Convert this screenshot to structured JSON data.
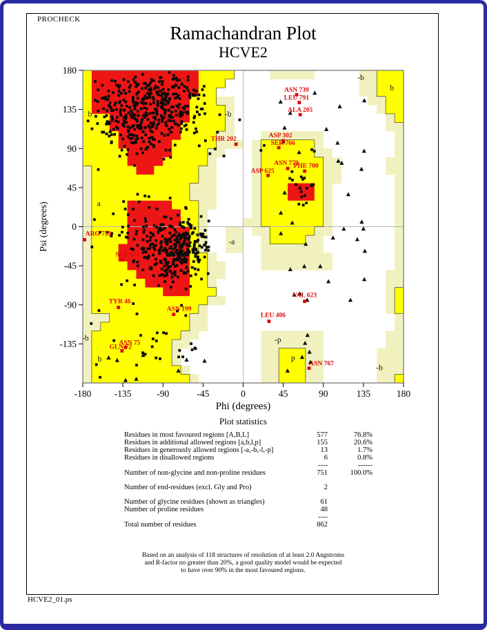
{
  "window": {
    "app_label": "PROCHECK",
    "file_label": "HCVE2_01.ps"
  },
  "title": "Ramachandran Plot",
  "subtitle": "HCVE2",
  "axes": {
    "xlabel": "Phi (degrees)",
    "ylabel": "Psi (degrees)",
    "xlim": [
      -180,
      180
    ],
    "ylim": [
      -180,
      180
    ],
    "x_ticks": [
      -180,
      -135,
      -90,
      -45,
      0,
      45,
      90,
      135,
      180
    ],
    "y_ticks": [
      180,
      135,
      90,
      45,
      0,
      -45,
      -90,
      -135
    ],
    "grid_crosshair": [
      0,
      0
    ]
  },
  "colors": {
    "favoured": "#ee1515",
    "allowed": "#ffff00",
    "generous": "#f1f1bf",
    "disallowed": "#ffffff",
    "boundary": "#3a3a2a",
    "frame": "#7a7a7a",
    "gridline": "#b2b2b2",
    "marker": "#0a0a0a",
    "outlier": "#dd0808",
    "border_navy": "#2a2aa2"
  },
  "chart_data": {
    "type": "scatter",
    "title": "Ramachandran Plot",
    "structure": "HCVE2",
    "region_grid": {
      "cell_deg": 10,
      "legend": {
        "R": "most favoured [A,B,L]",
        "Y": "additional allowed [a,b,l,p]",
        "G": "generously allowed [-a,-b,-l,-p]",
        "W": "disallowed"
      },
      "rows": [
        "YRRRRRRRRRRRRYYYYWWWWGGGGGWWWWWGGYYY",
        "YRRRRRRRRRRRRYYYWWWWWWWWWWWWWWWGGYYY",
        "YRRRRRRRRRRRRYYWWWWWWWWWWWWWWWWGGYYY",
        "YRRRRRRRRRRRYYYGGWWWWWWWWWWWWWWWGGYY",
        "YRRRRRRRRRRRYYYYGWWWWWWWWWWWWWWWWGYY",
        "YYYRRRRRRRRRYYYYGWWWWWWWWWWWWWWWWWGY",
        "YYYRRRRRRRRYYYYYGWWWWWWWWWWWWWWWWWGG",
        "YYYYRRRRRRRYYYYGGWWWGGGGGGGWWWWWWWWG",
        "YYYYRRRRRRYYYYYGGGWGYYYYYYGWWWWWWWWG",
        "YYYYYRRRRRYYYYGGWWWGYYYYYYGGWWWWWWWG",
        "YYYYYRRRRYYYYYGWWWWGYYYYYYYGGWWWWWGG",
        "GYYYYYRRYYYYYGGWWWWGYYYYYYYGGWWWWWGG",
        "GYYYYYYYYYYYYGGWWWWGYYYYYYYGGWWWWWWG",
        "GYYYYYYYYYYYGGGWWWWGYYYRRRYGWWWWWWWG",
        "GYYYYYYYYYYYGGGWWWWGYYYRRRYGWWWWWWWG",
        "GYYYYRRRRRYYYGGWWWWGYYYYYYYGWWWWWWWG",
        "GYYYYRRRRRRYYGWWWWWGYYYYYYYGWWWWWWWG",
        "GYYYYRRRRRRYYGWWWWGGYYYYYYYGWWWWWWWG",
        "GYYYYRRRRRRRYGWWGGWGGYYYYYGGWWWWWWWG",
        "GYYYYRRRRRRRYGWWGGWWGYYYYGGWWWWWWWWG",
        "GYYYRRRRRRRRYGWWGGWWGGGGGGGWWWWWWWWG",
        "GYYYRRRRRRRRYYGWWWWWGGGGGGGGWWWWWWWG",
        "GYYYYRRRRRRRYYGGWWWWGGGGGGGGWWWWWWWG",
        "GYYYYYRRRRRRYYGGWWWWWWWWWWWWWWWWWWGG",
        "GYYYYYYRRRRRYYGWWWWWWWWWWWWWWWWWWWGG",
        "GYYYYYYYYRRRYYYWWWWWWWWWWWWWWWWWWWGY",
        "GYYYYYYYYYYYYYGGWWWWWWWWWWWWWWWWWWGY",
        "GYYYYYYYYYYYYGWWWWWWWWWWWWWWWWWWWWGY",
        "GGGYYYYYYYYYGGWWWWWWWWWWWWWWWWWWWWWG",
        "GGYYYYYYYYYYGGWWWWWWWWWWWWWWWWWWWWWG",
        "GYYYYYYYYYYGGWWWWWWWGGGGGGGWWWWWWWGG",
        "GYYYYYYYYYGGWWWWWWWWGGGGGGGWWWWWWWGG",
        "GYYYYYYYYYGWWWWWWWWWGGYYYGGWWWWWWGGG",
        "GYYYYYYYYYGWWWWWWWWWGGYYYGGWWWWWWGGG",
        "GYYYYYYYYYYGWWWWWWWWGGYYYGGWWWWWWGGG",
        "GYYYYYYYYYYYGWWWWWWWGGYYYGGWWWWWWGGY"
      ]
    },
    "region_labels": [
      {
        "text": "b",
        "phi": -172,
        "psi": 130
      },
      {
        "text": "-b",
        "phi": -17,
        "psi": 130
      },
      {
        "text": "a",
        "phi": -162,
        "psi": 27
      },
      {
        "text": "-a",
        "phi": -13,
        "psi": -17
      },
      {
        "text": "-b",
        "phi": -177,
        "psi": -128
      },
      {
        "text": "b",
        "phi": -161,
        "psi": -152
      },
      {
        "text": "-b",
        "phi": 132,
        "psi": 172
      },
      {
        "text": "b",
        "phi": 167,
        "psi": 160
      },
      {
        "text": "-p",
        "phi": 39,
        "psi": -130
      },
      {
        "text": "p",
        "phi": 56,
        "psi": -151
      },
      {
        "text": "-b",
        "phi": 153,
        "psi": -162
      }
    ],
    "outliers": [
      {
        "label": "ASN 739",
        "phi": 60,
        "psi": 152,
        "dx": 0,
        "dy": -4
      },
      {
        "label": "LEU 791",
        "phi": 63,
        "psi": 143,
        "dx": -4,
        "dy": -4
      },
      {
        "label": "ALA 205",
        "phi": 64,
        "psi": 129,
        "dx": 0,
        "dy": -4
      },
      {
        "label": "THR 202",
        "phi": -8,
        "psi": 95,
        "dx": -18,
        "dy": -5
      },
      {
        "label": "ASP 302",
        "phi": 45,
        "psi": 99,
        "dx": -4,
        "dy": -5
      },
      {
        "label": "SER 766",
        "phi": 40,
        "psi": 91,
        "dx": 6,
        "dy": -4
      },
      {
        "label": "ASN 779",
        "phi": 50,
        "psi": 67,
        "dx": -2,
        "dy": -5
      },
      {
        "label": "ASP 625",
        "phi": 28,
        "psi": 59,
        "dx": -8,
        "dy": -4
      },
      {
        "label": "PHE 700",
        "phi": 69,
        "psi": 64,
        "dx": 2,
        "dy": -5
      },
      {
        "label": "ARG 728",
        "phi": -178,
        "psi": -15,
        "dx": 20,
        "dy": -6
      },
      {
        "label": "SER 618",
        "phi": -136,
        "psi": -38,
        "dx": 8,
        "dy": -5
      },
      {
        "label": "TYR 46",
        "phi": -140,
        "psi": -93,
        "dx": 2,
        "dy": -6
      },
      {
        "label": "ASN 199",
        "phi": -78,
        "psi": -101,
        "dx": 8,
        "dy": -5
      },
      {
        "label": "LEU 406",
        "phi": 29,
        "psi": -109,
        "dx": 6,
        "dy": -6
      },
      {
        "label": "VAL 623",
        "phi": 69,
        "psi": -86,
        "dx": 0,
        "dy": -6
      },
      {
        "label": "ASN 75",
        "phi": -132,
        "psi": -139,
        "dx": 6,
        "dy": -4
      },
      {
        "label": "GLN 72",
        "phi": -136,
        "psi": -143,
        "dx": -2,
        "dy": -3
      },
      {
        "label": "ASN 767",
        "phi": 74,
        "psi": -163,
        "dx": 18,
        "dy": -4
      }
    ],
    "clusters": [
      {
        "phi": -98,
        "psi": 140,
        "sd_phi": 30,
        "sd_psi": 23,
        "n": 330,
        "clip": {
          "phi": [
            -176,
            -40
          ],
          "psi": [
            58,
            178
          ]
        }
      },
      {
        "phi": -120,
        "psi": 118,
        "sd_phi": 24,
        "sd_psi": 20,
        "n": 90,
        "clip": {
          "phi": [
            -176,
            -45
          ],
          "psi": [
            60,
            178
          ]
        }
      },
      {
        "phi": -72,
        "psi": -26,
        "sd_phi": 21,
        "sd_psi": 17,
        "n": 270,
        "clip": {
          "phi": [
            -166,
            -38
          ],
          "psi": [
            -72,
            22
          ]
        }
      },
      {
        "phi": -102,
        "psi": -8,
        "sd_phi": 30,
        "sd_psi": 26,
        "n": 60,
        "clip": {
          "phi": [
            -172,
            -40
          ],
          "psi": [
            -80,
            40
          ]
        }
      },
      {
        "phi": 60,
        "psi": 40,
        "sd_phi": 11,
        "sd_psi": 15,
        "n": 15,
        "clip": {
          "phi": [
            30,
            85
          ],
          "psi": [
            -5,
            88
          ]
        }
      }
    ],
    "uniform_points": [
      {
        "n": 22,
        "phi": [
          -175,
          -42
        ],
        "psi": [
          -178,
          -122
        ]
      },
      {
        "n": 14,
        "phi": [
          -175,
          -32
        ],
        "psi": [
          -120,
          -62
        ]
      },
      {
        "n": 6,
        "phi": [
          -40,
          5
        ],
        "psi": [
          80,
          170
        ]
      },
      {
        "n": 5,
        "phi": [
          10,
          80
        ],
        "psi": [
          85,
          110
        ]
      }
    ],
    "glycine_groups": [
      {
        "n": 36,
        "phi": [
          40,
          140
        ],
        "psi": [
          -110,
          178
        ]
      },
      {
        "n": 8,
        "phi": [
          -170,
          -40
        ],
        "psi": [
          -180,
          -145
        ]
      },
      {
        "n": 6,
        "phi": [
          40,
          92
        ],
        "psi": [
          -180,
          -125
        ]
      },
      {
        "n": 6,
        "phi": [
          -150,
          -60
        ],
        "psi": [
          60,
          170
        ]
      },
      {
        "n": 5,
        "phi": [
          -125,
          -60
        ],
        "psi": [
          -60,
          0
        ]
      }
    ],
    "seed": 1234567
  },
  "statistics": {
    "heading": "Plot statistics",
    "rows": [
      {
        "label": "Residues in most favoured regions  [A,B,L]",
        "value": "577",
        "pct": "76.8%"
      },
      {
        "label": "Residues in additional allowed regions  [a,b,l,p]",
        "value": "155",
        "pct": "20.6%"
      },
      {
        "label": "Residues in generously allowed regions  [-a,-b,-l,-p]",
        "value": "13",
        "pct": "1.7%"
      },
      {
        "label": "Residues in disallowed regions",
        "value": "6",
        "pct": "0.8%"
      },
      {
        "type": "sep",
        "value": "----",
        "pct": "------"
      },
      {
        "label": "Number of non-glycine and non-proline residues",
        "value": "751",
        "pct": "100.0%"
      },
      {
        "type": "gap"
      },
      {
        "label": "Number of end-residues (excl. Gly and Pro)",
        "value": "2",
        "pct": ""
      },
      {
        "type": "gap"
      },
      {
        "label": "Number of glycine residues (shown as triangles)",
        "value": "61",
        "pct": ""
      },
      {
        "label": "Number of proline residues",
        "value": "48",
        "pct": ""
      },
      {
        "type": "sep",
        "value": "----",
        "pct": ""
      },
      {
        "label": "Total number of residues",
        "value": "862",
        "pct": ""
      }
    ],
    "footnote_lines": [
      "Based on an analysis of 118 structures of resolution of at least 2.0 Angstroms",
      "and R-factor no greater than 20%, a good quality model would be expected",
      "to have over 90% in the most favoured regions."
    ]
  }
}
